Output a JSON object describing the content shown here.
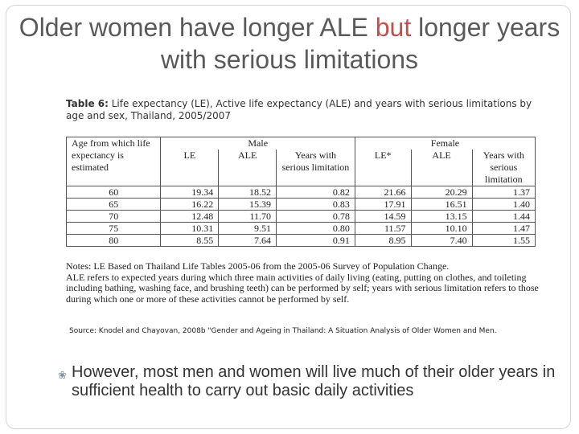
{
  "title": {
    "part1": "Older women have longer ALE ",
    "accent": "but",
    "part2": " longer years with serious limitations"
  },
  "table_caption": {
    "label": "Table 6:",
    "text": " Life expectancy (LE), Active life expectancy (ALE) and years with serious limitations by age and sex, Thailand, 2005/2007"
  },
  "table": {
    "age_header": "Age from which life expectancy is estimated",
    "male_header": "Male",
    "female_header": "Female",
    "male_cols": [
      "LE",
      "ALE",
      "Years with serious limitation"
    ],
    "female_cols": [
      "LE*",
      "ALE",
      "Years with serious limitation"
    ],
    "rows": [
      {
        "age": "60",
        "m_le": "19.34",
        "m_ale": "18.52",
        "m_lim": "0.82",
        "f_le": "21.66",
        "f_ale": "20.29",
        "f_lim": "1.37"
      },
      {
        "age": "65",
        "m_le": "16.22",
        "m_ale": "15.39",
        "m_lim": "0.83",
        "f_le": "17.91",
        "f_ale": "16.51",
        "f_lim": "1.40"
      },
      {
        "age": "70",
        "m_le": "12.48",
        "m_ale": "11.70",
        "m_lim": "0.78",
        "f_le": "14.59",
        "f_ale": "13.15",
        "f_lim": "1.44"
      },
      {
        "age": "75",
        "m_le": "10.31",
        "m_ale": "9.51",
        "m_lim": "0.80",
        "f_le": "11.57",
        "f_ale": "10.10",
        "f_lim": "1.47"
      },
      {
        "age": "80",
        "m_le": "8.55",
        "m_ale": "7.64",
        "m_lim": "0.91",
        "f_le": "8.95",
        "f_ale": "7.40",
        "f_lim": "1.55"
      }
    ]
  },
  "notes": {
    "line1": "Notes: LE Based on Thailand Life Tables 2005-06 from the 2005-06 Survey of Population Change.",
    "line2": "ALE refers to expected years during which three main activities of daily living (eating, putting on clothes, and toileting including bathing, washing face, and brushing teeth) can be performed by self; years with serious limitation refers to those during which one or more of these activities cannot be performed by self."
  },
  "source": "Source: Knodel and Chayovan, 2008b \"Gender and Ageing in Thailand: A Situation Analysis of Older Women and Men.",
  "bullet": "However, most men and women will live much of their older years in sufficient health to carry out basic daily activities"
}
